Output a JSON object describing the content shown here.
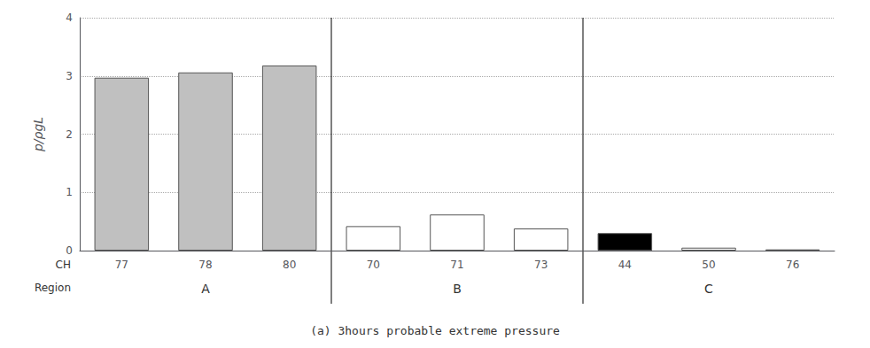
{
  "chart_data": {
    "type": "bar",
    "title": "(a) 3hours probable extreme pressure",
    "categories": [
      "77",
      "78",
      "80",
      "70",
      "71",
      "73",
      "44",
      "50",
      "76"
    ],
    "values": [
      2.97,
      3.06,
      3.18,
      0.42,
      0.62,
      0.38,
      0.3,
      0.05,
      0.02
    ],
    "colors": [
      "#c0c0c0",
      "#c0c0c0",
      "#c0c0c0",
      "#ffffff",
      "#ffffff",
      "#ffffff",
      "#000000",
      "#ffffff",
      "#ffffff"
    ],
    "xlabel": "CH",
    "groups": {
      "label": "Region",
      "items": [
        {
          "name": "A",
          "categories": [
            "77",
            "78",
            "80"
          ]
        },
        {
          "name": "B",
          "categories": [
            "70",
            "71",
            "73"
          ]
        },
        {
          "name": "C",
          "categories": [
            "44",
            "50",
            "76"
          ]
        }
      ]
    },
    "ylabel": "p/ρgL",
    "ylim": [
      0,
      4
    ],
    "yticks": [
      0,
      1,
      2,
      3,
      4
    ],
    "grid": true
  }
}
